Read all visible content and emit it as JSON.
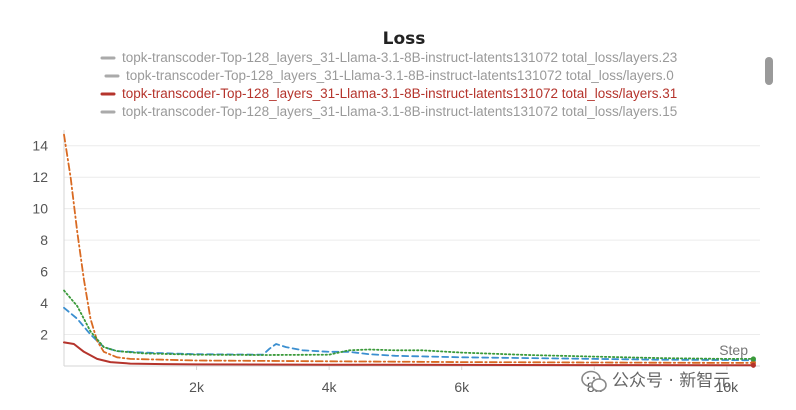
{
  "chart_data": {
    "type": "line",
    "title": "Loss",
    "xlabel": "Step",
    "ylabel": "",
    "xlim": [
      0,
      10500
    ],
    "ylim": [
      0,
      15
    ],
    "xticks": [
      2000,
      4000,
      6000,
      8000,
      10000
    ],
    "xtick_labels": [
      "2k",
      "4k",
      "6k",
      "8k",
      "10k"
    ],
    "yticks": [
      2,
      4,
      6,
      8,
      10,
      12,
      14
    ],
    "grid": true,
    "legend_position": "top",
    "series": [
      {
        "name": "topk-transcoder-Top-128_layers_31-Llama-3.1-8B-instruct-latents131072 total_loss/layers.23",
        "color": "#3b8fd0",
        "dash": "dashed",
        "legend_color": "#aaaaaa",
        "x": [
          0,
          200,
          400,
          600,
          800,
          1200,
          2000,
          3000,
          3100,
          3200,
          3350,
          3600,
          4000,
          4300,
          4600,
          5000,
          6000,
          7000,
          8000,
          9000,
          10000,
          10400
        ],
        "y": [
          3.7,
          3.0,
          2.0,
          1.2,
          0.95,
          0.85,
          0.75,
          0.72,
          1.1,
          1.4,
          1.2,
          1.0,
          0.9,
          0.9,
          0.75,
          0.65,
          0.55,
          0.5,
          0.45,
          0.4,
          0.38,
          0.36
        ]
      },
      {
        "name": "topk-transcoder-Top-128_layers_31-Llama-3.1-8B-instruct-latents131072 total_loss/layers.0",
        "color": "#d96a22",
        "dash": "dashdot",
        "legend_color": "#aaaaaa",
        "x": [
          0,
          100,
          200,
          300,
          400,
          500,
          600,
          800,
          1000,
          2000,
          4000,
          6000,
          8000,
          10000,
          10400
        ],
        "y": [
          14.7,
          12.0,
          8.5,
          5.5,
          3.0,
          1.6,
          0.9,
          0.55,
          0.45,
          0.35,
          0.3,
          0.25,
          0.22,
          0.2,
          0.2
        ]
      },
      {
        "name": "topk-transcoder-Top-128_layers_31-Llama-3.1-8B-instruct-latents131072 total_loss/layers.31",
        "color": "#b5342c",
        "dash": "solid",
        "legend_color": "#b5342c",
        "x": [
          0,
          150,
          300,
          500,
          700,
          1000,
          1500,
          2000,
          4000,
          6000,
          8000,
          10000,
          10400
        ],
        "y": [
          1.5,
          1.4,
          0.9,
          0.45,
          0.25,
          0.15,
          0.12,
          0.1,
          0.08,
          0.07,
          0.06,
          0.05,
          0.05
        ]
      },
      {
        "name": "topk-transcoder-Top-128_layers_31-Llama-3.1-8B-instruct-latents131072 total_loss/layers.15",
        "color": "#3a9a3a",
        "dash": "dotted",
        "legend_color": "#aaaaaa",
        "x": [
          0,
          200,
          400,
          600,
          800,
          1200,
          2000,
          3000,
          4000,
          4300,
          4600,
          5000,
          5400,
          6000,
          7000,
          8000,
          9000,
          10000,
          10400
        ],
        "y": [
          4.8,
          3.8,
          2.2,
          1.2,
          0.95,
          0.8,
          0.72,
          0.7,
          0.72,
          1.0,
          1.05,
          1.0,
          1.0,
          0.85,
          0.7,
          0.6,
          0.5,
          0.45,
          0.45
        ]
      }
    ]
  },
  "watermark": {
    "text": "公众号 · 新智元",
    "icon": "wechat-icon"
  }
}
